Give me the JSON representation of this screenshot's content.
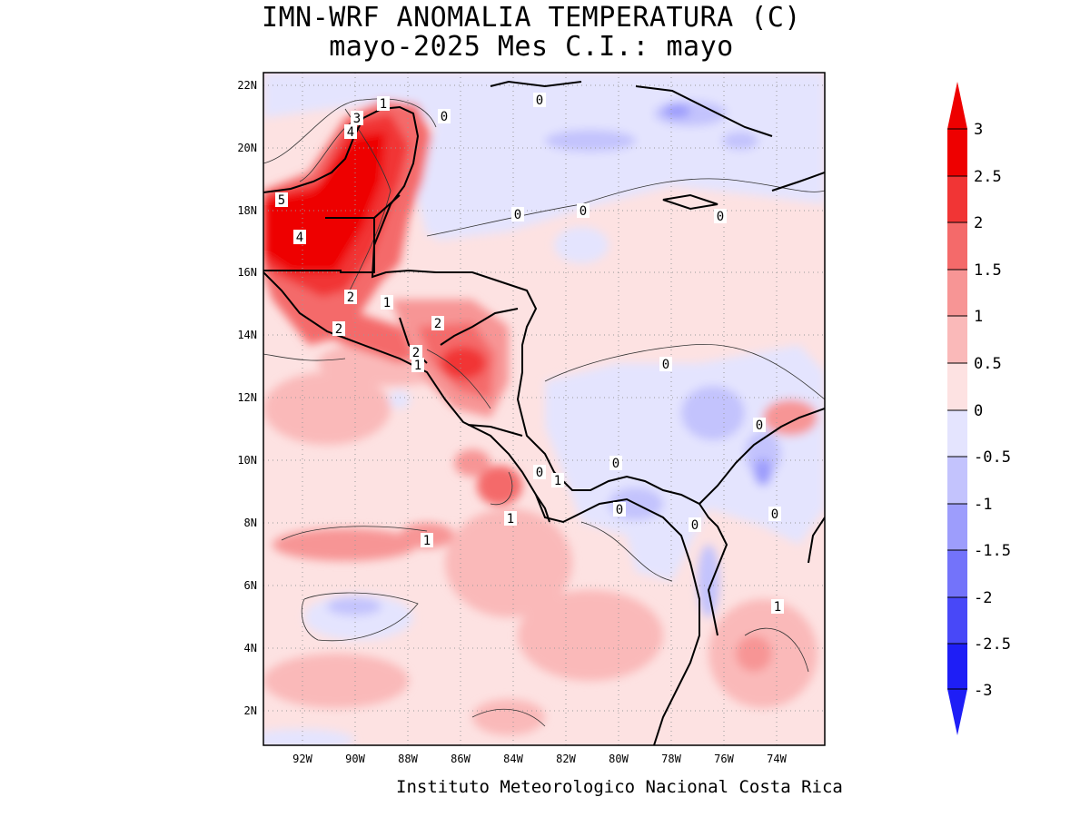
{
  "title_line1": "IMN-WRF  ANOMALIA TEMPERATURA (C)",
  "title_line2": "mayo-2025 Mes C.I.: mayo",
  "credit": "Instituto Meteorologico Nacional Costa Rica",
  "map": {
    "lat_labels": [
      "22N",
      "20N",
      "18N",
      "16N",
      "14N",
      "12N",
      "10N",
      "8N",
      "6N",
      "4N",
      "2N"
    ],
    "lon_labels": [
      "92W",
      "90W",
      "88W",
      "86W",
      "84W",
      "82W",
      "80W",
      "78W",
      "76W",
      "74W"
    ],
    "contour_labels": [
      "1",
      "3",
      "4",
      "0",
      "5",
      "4",
      "2",
      "1",
      "2",
      "2",
      "2",
      "1",
      "0",
      "0",
      "0",
      "0",
      "0",
      "0",
      "0",
      "0",
      "1",
      "1",
      "0",
      "0",
      "0",
      "1",
      "1"
    ]
  },
  "colorbar": {
    "labels": [
      "3",
      "2.5",
      "2",
      "1.5",
      "1",
      "0.5",
      "0",
      "-0.5",
      "-1",
      "-1.5",
      "-2",
      "-2.5",
      "-3"
    ],
    "colors": [
      "#ee0000",
      "#f13535",
      "#f46a6a",
      "#f79595",
      "#fab9b9",
      "#fde2e2",
      "#e4e4fe",
      "#c3c3fd",
      "#9d9dfc",
      "#7373fa",
      "#4848f8",
      "#1e1ef6"
    ]
  }
}
